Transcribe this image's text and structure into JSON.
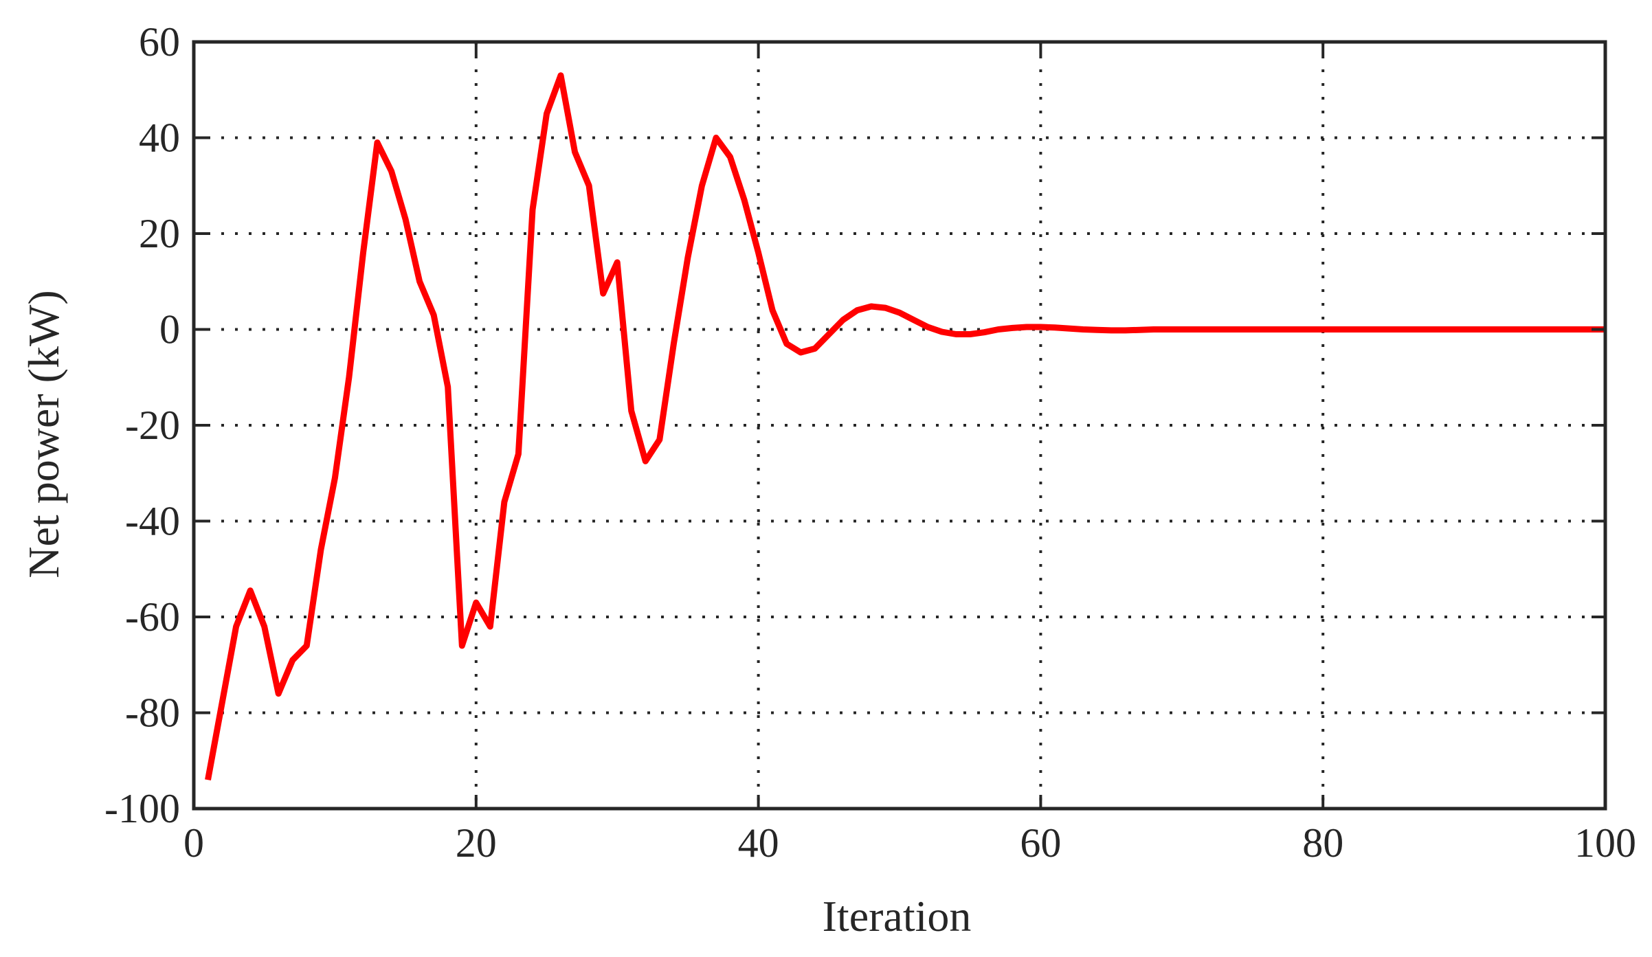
{
  "chart_data": {
    "type": "line",
    "title": "",
    "xlabel": "Iteration",
    "ylabel": "Net power (kW)",
    "xlim": [
      0,
      100
    ],
    "ylim": [
      -100,
      60
    ],
    "xticks": [
      0,
      20,
      40,
      60,
      80,
      100
    ],
    "yticks": [
      -100,
      -80,
      -60,
      -40,
      -20,
      0,
      20,
      40,
      60
    ],
    "grid": true,
    "grid_style": "dotted",
    "legend": "none",
    "colors": {
      "series": "#ff0000",
      "axes": "#262626",
      "grid": "#262626",
      "background": "#ffffff"
    },
    "series": [
      {
        "x": [
          1,
          2,
          3,
          4,
          5,
          6,
          7,
          8,
          9,
          10,
          11,
          12,
          13,
          14,
          15,
          16,
          17,
          18,
          19,
          20,
          21,
          22,
          23,
          24,
          25,
          26,
          27,
          28,
          29,
          30,
          31,
          32,
          33,
          34,
          35,
          36,
          37,
          38,
          39,
          40,
          41,
          42,
          43,
          44,
          45,
          46,
          47,
          48,
          49,
          50,
          51,
          52,
          53,
          54,
          55,
          56,
          57,
          58,
          59,
          60,
          61,
          62,
          63,
          64,
          65,
          66,
          67,
          68,
          69,
          70,
          75,
          80,
          85,
          90,
          95,
          100
        ],
        "y": [
          -94,
          -78,
          -62,
          -54.5,
          -62,
          -76,
          -69,
          -66,
          -46,
          -31,
          -10,
          16,
          39,
          33,
          23,
          10,
          3,
          -12,
          -66,
          -57,
          -62,
          -36,
          -26,
          25,
          45,
          53,
          37,
          30,
          7.5,
          14,
          -17,
          -27.5,
          -23,
          -3,
          15,
          30,
          40,
          36,
          27,
          16,
          4,
          -3,
          -4.8,
          -4,
          -1,
          2,
          4,
          4.8,
          4.5,
          3.5,
          2,
          0.5,
          -0.5,
          -1,
          -1,
          -0.6,
          0,
          0.3,
          0.5,
          0.5,
          0.4,
          0.2,
          0,
          -0.1,
          -0.2,
          -0.2,
          -0.1,
          0,
          0,
          0,
          0,
          0,
          0,
          0,
          0,
          0
        ]
      }
    ]
  }
}
